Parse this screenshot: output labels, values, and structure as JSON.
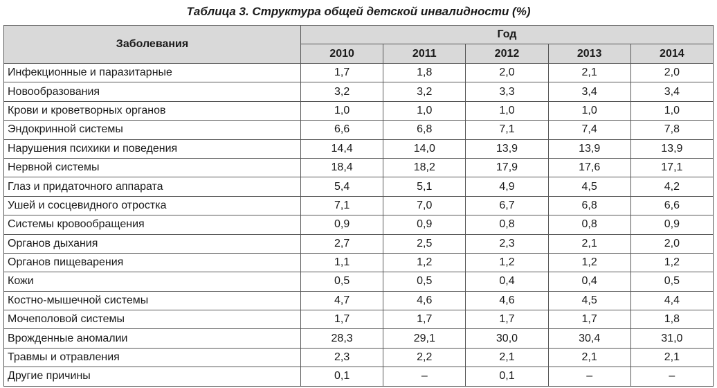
{
  "caption": "Таблица 3. Структура общей детской инвалидности (%)",
  "header": {
    "disease": "Заболевания",
    "year_group": "Год",
    "years": [
      "2010",
      "2011",
      "2012",
      "2013",
      "2014"
    ]
  },
  "rows": [
    {
      "name": "Инфекционные и паразитарные",
      "values": [
        "1,7",
        "1,8",
        "2,0",
        "2,1",
        "2,0"
      ]
    },
    {
      "name": "Новообразования",
      "values": [
        "3,2",
        "3,2",
        "3,3",
        "3,4",
        "3,4"
      ]
    },
    {
      "name": "Крови и кроветворных органов",
      "values": [
        "1,0",
        "1,0",
        "1,0",
        "1,0",
        "1,0"
      ]
    },
    {
      "name": "Эндокринной системы",
      "values": [
        "6,6",
        "6,8",
        "7,1",
        "7,4",
        "7,8"
      ]
    },
    {
      "name": "Нарушения психики и поведения",
      "values": [
        "14,4",
        "14,0",
        "13,9",
        "13,9",
        "13,9"
      ]
    },
    {
      "name": "Нервной системы",
      "values": [
        "18,4",
        "18,2",
        "17,9",
        "17,6",
        "17,1"
      ]
    },
    {
      "name": "Глаз и придаточного аппарата",
      "values": [
        "5,4",
        "5,1",
        "4,9",
        "4,5",
        "4,2"
      ]
    },
    {
      "name": "Ушей и сосцевидного отростка",
      "values": [
        "7,1",
        "7,0",
        "6,7",
        "6,8",
        "6,6"
      ]
    },
    {
      "name": "Системы кровообращения",
      "values": [
        "0,9",
        "0,9",
        "0,8",
        "0,8",
        "0,9"
      ]
    },
    {
      "name": "Органов дыхания",
      "values": [
        "2,7",
        "2,5",
        "2,3",
        "2,1",
        "2,0"
      ]
    },
    {
      "name": "Органов пищеварения",
      "values": [
        "1,1",
        "1,2",
        "1,2",
        "1,2",
        "1,2"
      ]
    },
    {
      "name": "Кожи",
      "values": [
        "0,5",
        "0,5",
        "0,4",
        "0,4",
        "0,5"
      ]
    },
    {
      "name": "Костно-мышечной системы",
      "values": [
        "4,7",
        "4,6",
        "4,6",
        "4,5",
        "4,4"
      ]
    },
    {
      "name": "Мочеполовой системы",
      "values": [
        "1,7",
        "1,7",
        "1,7",
        "1,7",
        "1,8"
      ]
    },
    {
      "name": "Врожденные аномалии",
      "values": [
        "28,3",
        "29,1",
        "30,0",
        "30,4",
        "31,0"
      ]
    },
    {
      "name": "Травмы и отравления",
      "values": [
        "2,3",
        "2,2",
        "2,1",
        "2,1",
        "2,1"
      ]
    },
    {
      "name": "Другие причины",
      "values": [
        "0,1",
        "–",
        "0,1",
        "–",
        "–"
      ]
    }
  ]
}
